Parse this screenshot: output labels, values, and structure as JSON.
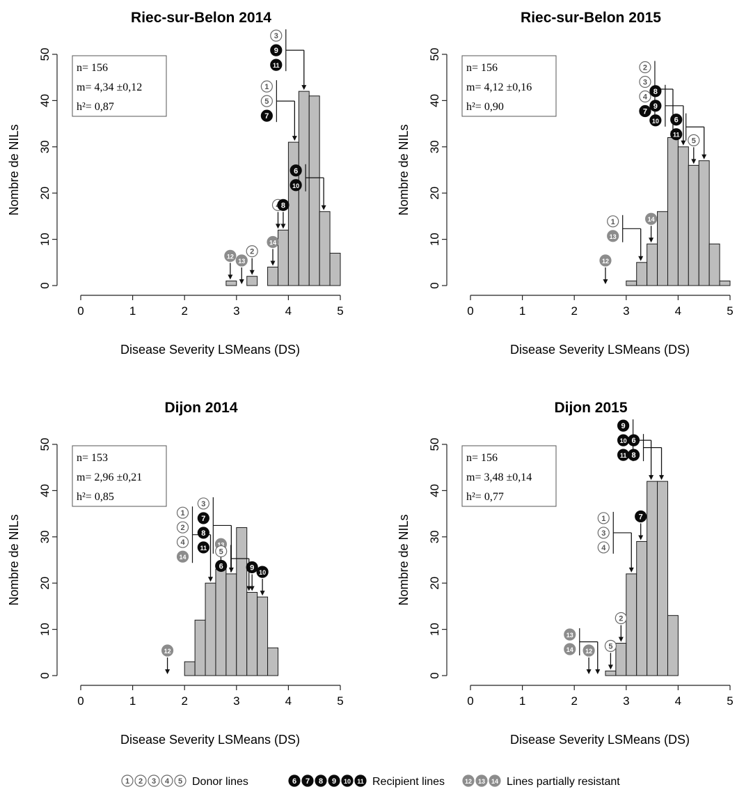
{
  "chart_data": [
    {
      "type": "bar",
      "title": "Riec-sur-Belon 2014",
      "xlabel": "Disease Severity LSMeans (DS)",
      "ylabel": "Nombre de NILs",
      "xlim": [
        0,
        5
      ],
      "ylim": [
        0,
        50
      ],
      "xticks": [
        "0",
        "1",
        "2",
        "3",
        "4",
        "5"
      ],
      "yticks": [
        "0",
        "10",
        "20",
        "30",
        "40",
        "50"
      ],
      "bin_width": 0.2,
      "bins_start": [
        2.8,
        3.0,
        3.2,
        3.4,
        3.6,
        3.8,
        4.0,
        4.2,
        4.4,
        4.6,
        4.8
      ],
      "values": [
        1,
        0,
        2,
        0,
        4,
        12,
        31,
        42,
        41,
        16,
        7
      ],
      "stats": {
        "n": "n= 156",
        "m": "m= 4,34 ±0,12",
        "h": "h²= 0,87"
      },
      "annotations": [
        {
          "labels": [
            "12"
          ],
          "x": 2.88
        },
        {
          "labels": [
            "13"
          ],
          "x": 3.1
        },
        {
          "labels": [
            "2"
          ],
          "x": 3.3
        },
        {
          "labels": [
            "14"
          ],
          "x": 3.7
        },
        {
          "labels": [
            "4"
          ],
          "x": 3.8
        },
        {
          "labels": [
            "8"
          ],
          "x": 3.9
        },
        {
          "labels": [
            "1",
            "5",
            "7"
          ],
          "x": 4.12
        },
        {
          "labels": [
            "3",
            "9",
            "11"
          ],
          "x": 4.3
        },
        {
          "labels": [
            "6",
            "10"
          ],
          "x": 4.68
        }
      ]
    },
    {
      "type": "bar",
      "title": "Riec-sur-Belon 2015",
      "xlabel": "Disease Severity LSMeans (DS)",
      "ylabel": "Nombre de NILs",
      "xlim": [
        0,
        5
      ],
      "ylim": [
        0,
        50
      ],
      "xticks": [
        "0",
        "1",
        "2",
        "3",
        "4",
        "5"
      ],
      "yticks": [
        "0",
        "10",
        "20",
        "30",
        "40",
        "50"
      ],
      "bin_width": 0.2,
      "bins_start": [
        3.0,
        3.2,
        3.4,
        3.6,
        3.8,
        4.0,
        4.2,
        4.4,
        4.6,
        4.8
      ],
      "values": [
        1,
        5,
        9,
        16,
        32,
        30,
        26,
        27,
        9,
        1
      ],
      "stats": {
        "n": "n= 156",
        "m": "m= 4,12 ±0,16",
        "h": "h²= 0,90"
      },
      "annotations": [
        {
          "labels": [
            "12"
          ],
          "x": 2.6
        },
        {
          "labels": [
            "1",
            "13"
          ],
          "x": 3.28
        },
        {
          "labels": [
            "14"
          ],
          "x": 3.48
        },
        {
          "labels": [
            "2",
            "3",
            "4",
            "7"
          ],
          "x": 3.9
        },
        {
          "labels": [
            "8",
            "9",
            "10"
          ],
          "x": 4.1
        },
        {
          "labels": [
            "5"
          ],
          "x": 4.3
        },
        {
          "labels": [
            "6",
            "11"
          ],
          "x": 4.5
        }
      ]
    },
    {
      "type": "bar",
      "title": "Dijon 2014",
      "xlabel": "Disease Severity LSMeans (DS)",
      "ylabel": "Nombre de NILs",
      "xlim": [
        0,
        5
      ],
      "ylim": [
        0,
        50
      ],
      "xticks": [
        "0",
        "1",
        "2",
        "3",
        "4",
        "5"
      ],
      "yticks": [
        "0",
        "10",
        "20",
        "30",
        "40",
        "50"
      ],
      "bin_width": 0.2,
      "bins_start": [
        2.0,
        2.2,
        2.4,
        2.6,
        2.8,
        3.0,
        3.2,
        3.4,
        3.6
      ],
      "values": [
        3,
        12,
        20,
        23,
        22,
        32,
        18,
        17,
        6
      ],
      "stats": {
        "n": "n= 153",
        "m": "m= 2,96 ±0,21",
        "h": "h²= 0,85"
      },
      "annotations": [
        {
          "labels": [
            "12"
          ],
          "x": 1.67
        },
        {
          "labels": [
            "1",
            "2",
            "4",
            "14"
          ],
          "x": 2.5
        },
        {
          "labels": [
            "13"
          ],
          "x": 2.7
        },
        {
          "labels": [
            "3",
            "7",
            "8",
            "11"
          ],
          "x": 2.9
        },
        {
          "labels": [
            "5",
            "6"
          ],
          "x": 3.24
        },
        {
          "labels": [
            "9"
          ],
          "x": 3.3
        },
        {
          "labels": [
            "10"
          ],
          "x": 3.5
        }
      ]
    },
    {
      "type": "bar",
      "title": "Dijon 2015",
      "xlabel": "Disease Severity LSMeans (DS)",
      "ylabel": "Nombre de NILs",
      "xlim": [
        0,
        5
      ],
      "ylim": [
        0,
        50
      ],
      "xticks": [
        "0",
        "1",
        "2",
        "3",
        "4",
        "5"
      ],
      "yticks": [
        "0",
        "10",
        "20",
        "30",
        "40",
        "50"
      ],
      "bin_width": 0.2,
      "bins_start": [
        2.6,
        2.8,
        3.0,
        3.2,
        3.4,
        3.6,
        3.8
      ],
      "values": [
        1,
        7,
        22,
        29,
        42,
        42,
        13
      ],
      "stats": {
        "n": "n= 156",
        "m": "m= 3,48 ±0,14",
        "h": "h²= 0,77"
      },
      "annotations": [
        {
          "labels": [
            "12"
          ],
          "x": 2.28
        },
        {
          "labels": [
            "13",
            "14"
          ],
          "x": 2.45
        },
        {
          "labels": [
            "5"
          ],
          "x": 2.7
        },
        {
          "labels": [
            "2"
          ],
          "x": 2.9
        },
        {
          "labels": [
            "1",
            "3",
            "4"
          ],
          "x": 3.1
        },
        {
          "labels": [
            "7"
          ],
          "x": 3.28
        },
        {
          "labels": [
            "9",
            "10",
            "11"
          ],
          "x": 3.48
        },
        {
          "labels": [
            "6",
            "8"
          ],
          "x": 3.68
        }
      ]
    }
  ],
  "legend": [
    {
      "glyphs": [
        "1",
        "2",
        "3",
        "4",
        "5"
      ],
      "style": "outline",
      "label": "Donor lines"
    },
    {
      "glyphs": [
        "6",
        "7",
        "8",
        "9",
        "10",
        "11"
      ],
      "style": "black",
      "label": "Recipient lines"
    },
    {
      "glyphs": [
        "12",
        "13",
        "14"
      ],
      "style": "grey",
      "label": "Lines partially resistant"
    }
  ],
  "colors": {
    "bar_fill": "#bdbdbd",
    "bar_stroke": "#1a1a1a",
    "donor_marker": "#ffffff",
    "recipient_marker": "#0a0a0a",
    "partial_marker": "#8c8c8c",
    "axis": "#222222"
  }
}
